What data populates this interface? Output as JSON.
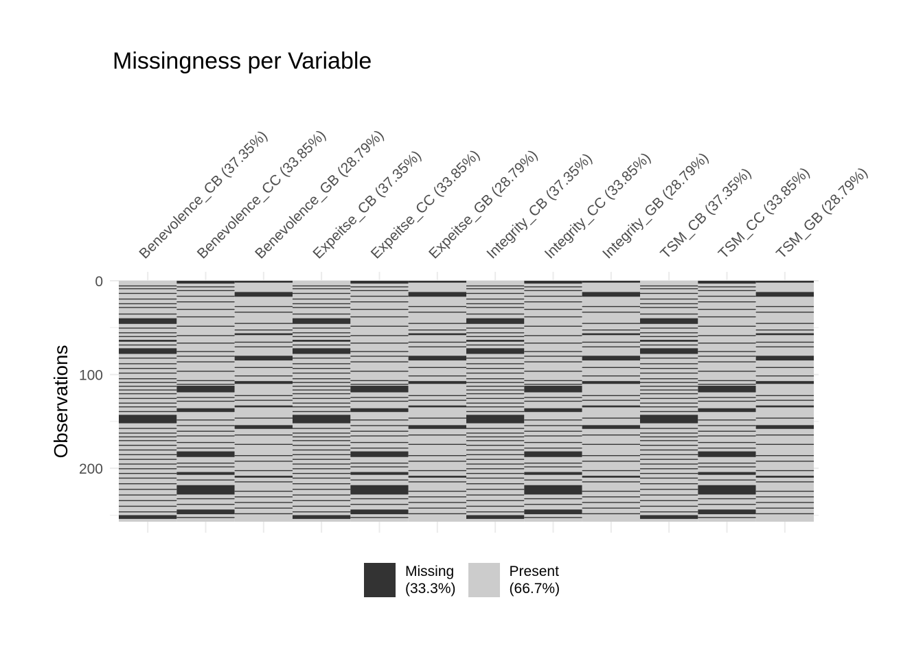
{
  "chart_data": {
    "type": "heatmap",
    "title": "Missingness per Variable",
    "xlabel": "",
    "ylabel": "Observations",
    "n_observations": 257,
    "ylim": [
      0,
      257
    ],
    "y_ticks": [
      0,
      100,
      200
    ],
    "y_reversed": true,
    "grid": true,
    "legend_position": "bottom",
    "columns": [
      {
        "label": "Benevolence_CB (37.35%)",
        "pattern": "A"
      },
      {
        "label": "Benevolence_CC (33.85%)",
        "pattern": "B"
      },
      {
        "label": "Benevolence_GB (28.79%)",
        "pattern": "C"
      },
      {
        "label": "Expeitse_CB (37.35%)",
        "pattern": "A"
      },
      {
        "label": "Expeitse_CC (33.85%)",
        "pattern": "B"
      },
      {
        "label": "Expeitse_GB (28.79%)",
        "pattern": "C"
      },
      {
        "label": "Integrity_CB (37.35%)",
        "pattern": "A"
      },
      {
        "label": "Integrity_CC (33.85%)",
        "pattern": "B"
      },
      {
        "label": "Integrity_GB (28.79%)",
        "pattern": "C"
      },
      {
        "label": "TSM_CB (37.35%)",
        "pattern": "A"
      },
      {
        "label": "TSM_CC (33.85%)",
        "pattern": "B"
      },
      {
        "label": "TSM_GB (28.79%)",
        "pattern": "C"
      }
    ],
    "missing_ranges": {
      "A": [
        [
          5,
          6
        ],
        [
          8,
          9
        ],
        [
          13,
          14
        ],
        [
          19,
          20
        ],
        [
          24,
          25
        ],
        [
          28,
          29
        ],
        [
          35,
          36
        ],
        [
          40,
          46
        ],
        [
          50,
          51
        ],
        [
          55,
          56
        ],
        [
          59,
          60
        ],
        [
          63,
          65
        ],
        [
          68,
          69
        ],
        [
          72,
          78
        ],
        [
          82,
          83
        ],
        [
          88,
          89
        ],
        [
          93,
          94
        ],
        [
          98,
          99
        ],
        [
          104,
          105
        ],
        [
          108,
          109
        ],
        [
          112,
          113
        ],
        [
          116,
          117
        ],
        [
          120,
          121
        ],
        [
          125,
          126
        ],
        [
          130,
          131
        ],
        [
          134,
          135
        ],
        [
          139,
          140
        ],
        [
          143,
          152
        ],
        [
          157,
          158
        ],
        [
          162,
          163
        ],
        [
          166,
          167
        ],
        [
          170,
          171
        ],
        [
          175,
          176
        ],
        [
          180,
          181
        ],
        [
          185,
          186
        ],
        [
          190,
          191
        ],
        [
          195,
          196
        ],
        [
          200,
          201
        ],
        [
          205,
          206
        ],
        [
          210,
          211
        ],
        [
          216,
          217
        ],
        [
          222,
          223
        ],
        [
          228,
          229
        ],
        [
          234,
          235
        ],
        [
          240,
          241
        ],
        [
          246,
          247
        ],
        [
          250,
          254
        ]
      ],
      "B": [
        [
          0,
          3
        ],
        [
          6,
          7
        ],
        [
          10,
          11
        ],
        [
          16,
          17
        ],
        [
          22,
          23
        ],
        [
          30,
          31
        ],
        [
          38,
          39
        ],
        [
          48,
          49
        ],
        [
          58,
          59
        ],
        [
          66,
          67
        ],
        [
          75,
          76
        ],
        [
          80,
          81
        ],
        [
          86,
          87
        ],
        [
          96,
          97
        ],
        [
          106,
          107
        ],
        [
          110,
          111
        ],
        [
          112,
          119
        ],
        [
          124,
          125
        ],
        [
          128,
          129
        ],
        [
          136,
          140
        ],
        [
          148,
          149
        ],
        [
          154,
          155
        ],
        [
          160,
          161
        ],
        [
          165,
          166
        ],
        [
          172,
          173
        ],
        [
          178,
          179
        ],
        [
          182,
          188
        ],
        [
          194,
          195
        ],
        [
          198,
          199
        ],
        [
          204,
          207
        ],
        [
          212,
          213
        ],
        [
          218,
          228
        ],
        [
          232,
          233
        ],
        [
          238,
          239
        ],
        [
          244,
          249
        ],
        [
          252,
          253
        ]
      ],
      "C": [
        [
          0,
          2
        ],
        [
          12,
          17
        ],
        [
          27,
          28
        ],
        [
          33,
          34
        ],
        [
          45,
          46
        ],
        [
          52,
          53
        ],
        [
          56,
          58
        ],
        [
          65,
          66
        ],
        [
          70,
          71
        ],
        [
          80,
          85
        ],
        [
          92,
          93
        ],
        [
          101,
          102
        ],
        [
          107,
          110
        ],
        [
          122,
          123
        ],
        [
          127,
          128
        ],
        [
          133,
          135
        ],
        [
          146,
          147
        ],
        [
          154,
          158
        ],
        [
          164,
          165
        ],
        [
          174,
          175
        ],
        [
          186,
          187
        ],
        [
          192,
          193
        ],
        [
          202,
          203
        ],
        [
          208,
          210
        ],
        [
          214,
          215
        ],
        [
          224,
          225
        ],
        [
          230,
          231
        ],
        [
          236,
          237
        ],
        [
          242,
          243
        ],
        [
          248,
          249
        ]
      ]
    },
    "legend": [
      {
        "label": "Missing\n(33.3%)",
        "color": "#333333"
      },
      {
        "label": "Present\n(66.7%)",
        "color": "#cccccc"
      }
    ],
    "colors": {
      "missing": "#333333",
      "present": "#cccccc",
      "grid": "#ebebeb",
      "tick_text": "#4d4d4d"
    }
  }
}
